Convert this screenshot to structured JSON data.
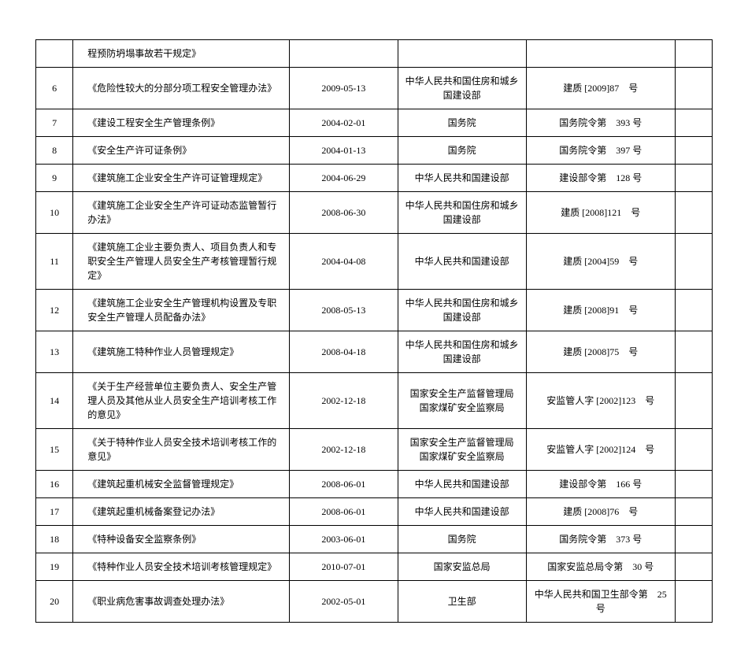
{
  "table": {
    "column_widths_percent": [
      5.5,
      32,
      16,
      19,
      22,
      5.5
    ],
    "font_size_pt": 12,
    "font_family": "SimSun",
    "border_color": "#000000",
    "text_color": "#000000",
    "background_color": "#ffffff",
    "rows": [
      {
        "idx": "",
        "name": "程预防坍塌事故若干规定》",
        "date": "",
        "issuer": "",
        "docnum": "",
        "blank": ""
      },
      {
        "idx": "6",
        "name": "《危险性较大的分部分项工程安全管理办法》",
        "date": "2009-05-13",
        "issuer": "中华人民共和国住房和城乡\n国建设部",
        "docnum": "建质 [2009]87　号",
        "blank": ""
      },
      {
        "idx": "7",
        "name": "《建设工程安全生产管理条例》",
        "date": "2004-02-01",
        "issuer": "国务院",
        "docnum": "国务院令第　393 号",
        "blank": ""
      },
      {
        "idx": "8",
        "name": "《安全生产许可证条例》",
        "date": "2004-01-13",
        "issuer": "国务院",
        "docnum": "国务院令第　397 号",
        "blank": ""
      },
      {
        "idx": "9",
        "name": "《建筑施工企业安全生产许可证管理规定》",
        "date": "2004-06-29",
        "issuer": "中华人民共和国建设部",
        "docnum": "建设部令第　128 号",
        "blank": ""
      },
      {
        "idx": "10",
        "name": "《建筑施工企业安全生产许可证动态监管暂行办法》",
        "date": "2008-06-30",
        "issuer": "中华人民共和国住房和城乡\n国建设部",
        "docnum": "建质 [2008]121　号",
        "blank": ""
      },
      {
        "idx": "11",
        "name": "《建筑施工企业主要负责人、项目负责人和专职安全生产管理人员安全生产考核管理暂行规定》",
        "date": "2004-04-08",
        "issuer": "中华人民共和国建设部",
        "docnum": "建质 [2004]59　号",
        "blank": ""
      },
      {
        "idx": "12",
        "name": "《建筑施工企业安全生产管理机构设置及专职安全生产管理人员配备办法》",
        "date": "2008-05-13",
        "issuer": "中华人民共和国住房和城乡\n国建设部",
        "docnum": "建质 [2008]91　号",
        "blank": ""
      },
      {
        "idx": "13",
        "name": "《建筑施工特种作业人员管理规定》",
        "date": "2008-04-18",
        "issuer": "中华人民共和国住房和城乡\n国建设部",
        "docnum": "建质 [2008]75　号",
        "blank": ""
      },
      {
        "idx": "14",
        "name": "《关于生产经营单位主要负责人、安全生产管理人员及其他从业人员安全生产培训考核工作的意见》",
        "date": "2002-12-18",
        "issuer": "国家安全生产监督管理局\n国家煤矿安全监察局",
        "docnum": "安监管人字 [2002]123　号",
        "blank": ""
      },
      {
        "idx": "15",
        "name": "《关于特种作业人员安全技术培训考核工作的意见》",
        "date": "2002-12-18",
        "issuer": "国家安全生产监督管理局\n国家煤矿安全监察局",
        "docnum": "安监管人字 [2002]124　号",
        "blank": ""
      },
      {
        "idx": "16",
        "name": "《建筑起重机械安全监督管理规定》",
        "date": "2008-06-01",
        "issuer": "中华人民共和国建设部",
        "docnum": "建设部令第　166 号",
        "blank": ""
      },
      {
        "idx": "17",
        "name": "《建筑起重机械备案登记办法》",
        "date": "2008-06-01",
        "issuer": "中华人民共和国建设部",
        "docnum": "建质 [2008]76　号",
        "blank": ""
      },
      {
        "idx": "18",
        "name": "《特种设备安全监察条例》",
        "date": "2003-06-01",
        "issuer": "国务院",
        "docnum": "国务院令第　373 号",
        "blank": ""
      },
      {
        "idx": "19",
        "name": "《特种作业人员安全技术培训考核管理规定》",
        "date": "2010-07-01",
        "issuer": "国家安监总局",
        "docnum": "国家安监总局令第　30 号",
        "blank": ""
      },
      {
        "idx": "20",
        "name": "《职业病危害事故调查处理办法》",
        "date": "2002-05-01",
        "issuer": "卫生部",
        "docnum": "中华人民共和国卫生部令第　25 号",
        "blank": ""
      }
    ]
  }
}
